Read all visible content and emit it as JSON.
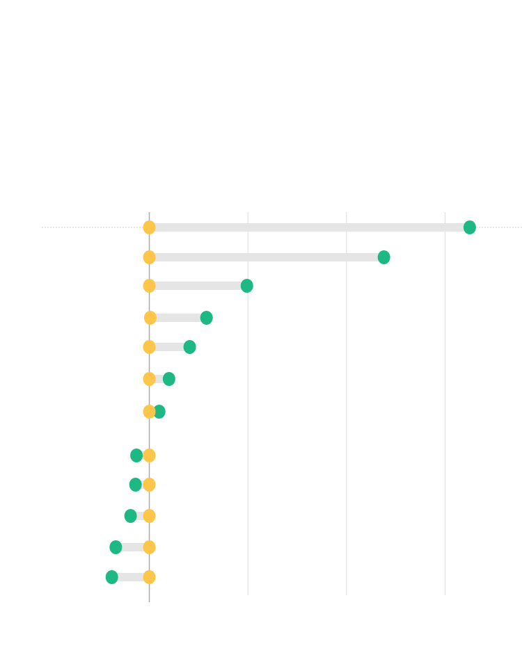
{
  "chart_data": {
    "type": "dot-range",
    "xlim": [
      -38.5,
      338.5
    ],
    "gridlines_at": [
      0,
      100,
      200,
      300
    ],
    "series": [
      {
        "role": "start",
        "color": "#FDC54A"
      },
      {
        "role": "end",
        "color": "#1DB884"
      }
    ],
    "rows": [
      {
        "start": 0,
        "end": 325
      },
      {
        "start": 0,
        "end": 238
      },
      {
        "start": 0,
        "end": 99
      },
      {
        "start": 1,
        "end": 58
      },
      {
        "start": 0,
        "end": 41
      },
      {
        "start": 0,
        "end": 20
      },
      {
        "start": 0,
        "end": 10
      },
      {
        "start": 0,
        "end": -13
      },
      {
        "start": 0,
        "end": -14
      },
      {
        "start": 0,
        "end": -19
      },
      {
        "start": 0,
        "end": -34
      },
      {
        "start": 0,
        "end": -38
      }
    ],
    "colors": {
      "bar": "#E5E5E5",
      "grid": "#DDDDDD",
      "zero_axis": "#AAAAAA",
      "reference_line": "#CFCFCF"
    }
  }
}
